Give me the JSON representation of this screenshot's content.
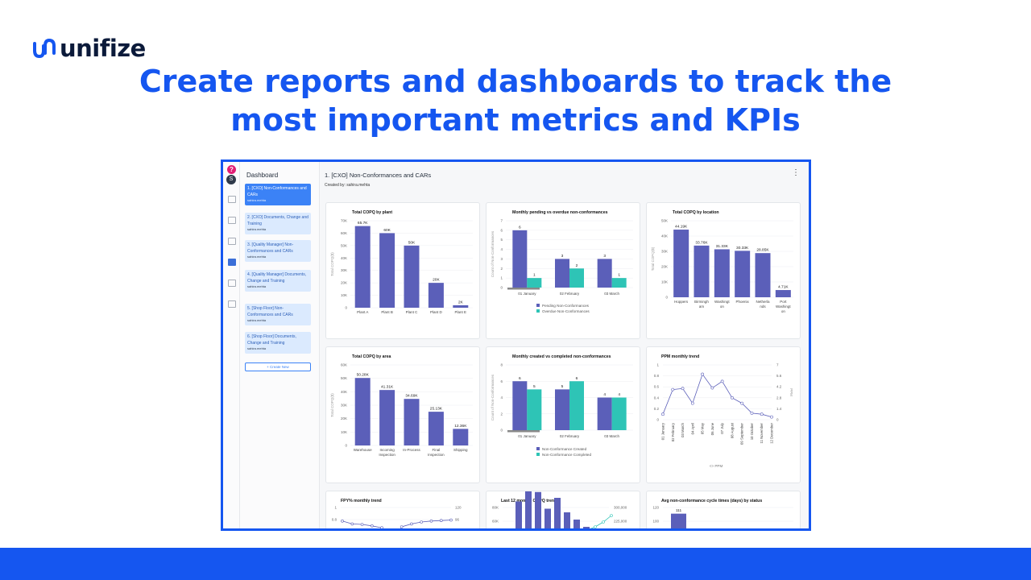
{
  "brand": {
    "name": "unifize",
    "color": "#1556f0",
    "text_color": "#0b1a3a"
  },
  "headline": [
    "Create reports and dashboards to track the",
    "most important metrics and KPIs"
  ],
  "app": {
    "help_icon": "?",
    "user_initial": "S",
    "rail_icons": [
      "home-icon",
      "chat-icon",
      "list-icon",
      "dashboard-icon",
      "folder-icon",
      "file-icon"
    ],
    "sidebar": {
      "title": "Dashboard",
      "items": [
        {
          "label": "1. [CXO] Non-Conformances and CARs",
          "created_by": "sahira.mehta",
          "active": true
        },
        {
          "label": "2. [CXO] Documents, Change and Training",
          "created_by": "sahira.mehta",
          "active": false
        },
        {
          "label": "3. [Quality Manager] Non-Conformances and CARs",
          "created_by": "sahira.mehta",
          "active": false
        },
        {
          "label": "4. [Quality Manager] Documents, Change and Training",
          "created_by": "sahira.mehta",
          "active": false
        },
        {
          "label": "5. [Shop Floor] Non-Conformances and CARs",
          "created_by": "sahira.mehta",
          "active": false
        },
        {
          "label": "6. [Shop Floor] Documents, Change and Training",
          "created_by": "sahira.mehta",
          "active": false
        }
      ],
      "create_button": "+ Create New"
    },
    "main": {
      "title": "1. [CXO] Non-Conformances and CARs",
      "created_by": "Created by: sahira.mehta",
      "menu_icon": "⋮"
    }
  },
  "colors": {
    "purple": "#5b5fb9",
    "teal": "#2ec4b6",
    "line": "#5b5fb9",
    "grid": "#eceef1"
  },
  "chart_data": [
    {
      "id": "copq_plant",
      "type": "bar",
      "title": "Total COPQ by plant",
      "ylabel": "Total COPQ($)",
      "categories": [
        "Plant A",
        "Plant B",
        "Plant C",
        "Plant D",
        "Plant E"
      ],
      "values": [
        65700,
        60000,
        50000,
        20000,
        2000
      ],
      "labels": [
        "65.7K",
        "60K",
        "50K",
        "20K",
        "2K"
      ],
      "ylim": [
        0,
        70000
      ],
      "yticks": [
        "0",
        "10K",
        "20K",
        "30K",
        "40K",
        "50K",
        "60K",
        "70K"
      ]
    },
    {
      "id": "pending_overdue",
      "type": "bar",
      "title": "Monthly pending vs overdue non-conformances",
      "ylabel": "Count of Non-Conformances",
      "categories": [
        "01 January",
        "02 February",
        "03 March"
      ],
      "series": [
        {
          "name": "Pending Non-Conformances",
          "values": [
            6,
            3,
            3
          ]
        },
        {
          "name": "Overdue Non-Conformances",
          "values": [
            1,
            2,
            1
          ]
        }
      ],
      "ylim": [
        0,
        7
      ],
      "yticks": [
        "0",
        "1",
        "2",
        "3",
        "4",
        "5",
        "6",
        "7"
      ]
    },
    {
      "id": "copq_location",
      "type": "bar",
      "title": "Total COPQ by location",
      "ylabel": "Total COPQ($)",
      "categories": [
        [
          "Hoppers"
        ],
        [
          "Birmingh",
          "am"
        ],
        [
          "Washingt",
          "on"
        ],
        [
          "Phoenix"
        ],
        [
          "Netherla",
          "nds"
        ],
        [
          "Port",
          "Washingt",
          "on"
        ]
      ],
      "values": [
        44190,
        33760,
        31330,
        30330,
        28850,
        4710
      ],
      "labels": [
        "44.19K",
        "33.76K",
        "31.33K",
        "30.33K",
        "28.85K",
        "4.71K"
      ],
      "ylim": [
        0,
        50000
      ],
      "yticks": [
        "0",
        "10K",
        "20K",
        "30K",
        "40K",
        "50K"
      ]
    },
    {
      "id": "copq_area",
      "type": "bar",
      "title": "Total COPQ by area",
      "ylabel": "Total COPQ($)",
      "categories": [
        [
          "Warehouse"
        ],
        [
          "Incoming",
          "Inspection"
        ],
        [
          "In-Process"
        ],
        [
          "Final",
          "Inspection"
        ],
        [
          "Shipping"
        ]
      ],
      "values": [
        50280,
        41310,
        34690,
        25130,
        12360
      ],
      "labels": [
        "50.28K",
        "41.31K",
        "34.69K",
        "25.13K",
        "12.36K"
      ],
      "ylim": [
        0,
        60000
      ],
      "yticks": [
        "0",
        "10K",
        "20K",
        "30K",
        "40K",
        "50K",
        "60K"
      ]
    },
    {
      "id": "created_completed",
      "type": "bar",
      "title": "Monthly created vs completed non-conformances",
      "ylabel": "Count of Non-Conformances",
      "categories": [
        "01 January",
        "02 February",
        "03 March"
      ],
      "series": [
        {
          "name": "Non-Conformance Created",
          "values": [
            6,
            5,
            4
          ]
        },
        {
          "name": "Non-Conformance Completed",
          "values": [
            5,
            6,
            4
          ]
        }
      ],
      "ylim": [
        0,
        8
      ],
      "yticks": [
        "0",
        "2",
        "4",
        "6",
        "8"
      ]
    },
    {
      "id": "ppm_trend",
      "type": "line",
      "title": "PPM monthly trend",
      "ylabel_right": "PPM",
      "categories": [
        "01 January",
        "02 February",
        "03 March",
        "04 April",
        "05 May",
        "06 June",
        "07 July",
        "08 August",
        "09 September",
        "10 October",
        "11 November",
        "12 December"
      ],
      "series": [
        {
          "name": "PPM",
          "values": [
            0.1,
            0.55,
            0.57,
            0.3,
            0.83,
            0.58,
            0.7,
            0.4,
            0.3,
            0.12,
            0.1,
            0.05
          ]
        }
      ],
      "ylim": [
        0,
        1
      ],
      "yticks": [
        "0",
        "0.2",
        "0.4",
        "0.6",
        "0.8",
        "1"
      ],
      "yticks_right": [
        "0",
        "1.4",
        "2.8",
        "4.2",
        "5.6",
        "7"
      ]
    },
    {
      "id": "fpy_trend",
      "type": "line",
      "title": "FPY% monthly trend",
      "series": [
        {
          "name": "FPY%",
          "values": [
            0.72,
            0.66,
            0.65,
            0.62,
            0.58,
            0.22,
            0.6,
            0.66,
            0.7,
            0.72,
            0.73,
            0.74
          ]
        }
      ],
      "yticks": [
        "1",
        "0.8"
      ],
      "yticks_right": [
        "120",
        "96"
      ]
    },
    {
      "id": "copq_12m",
      "type": "bar",
      "title": "Last 12 months COPQ trend",
      "values": [
        55,
        75,
        68,
        45,
        60,
        40,
        30,
        20
      ],
      "series_line": [
        0.2,
        0.25,
        0.3,
        0.4,
        0.55,
        0.75
      ],
      "yticks": [
        "80K",
        "60K"
      ],
      "yticks_right": [
        "300,000",
        "225,000"
      ]
    },
    {
      "id": "cycle_times",
      "type": "bar",
      "title": "Avg non-conformance cycle times (days) by status",
      "values": [
        111
      ],
      "labels": [
        "111"
      ],
      "yticks": [
        "120",
        "100"
      ]
    }
  ]
}
